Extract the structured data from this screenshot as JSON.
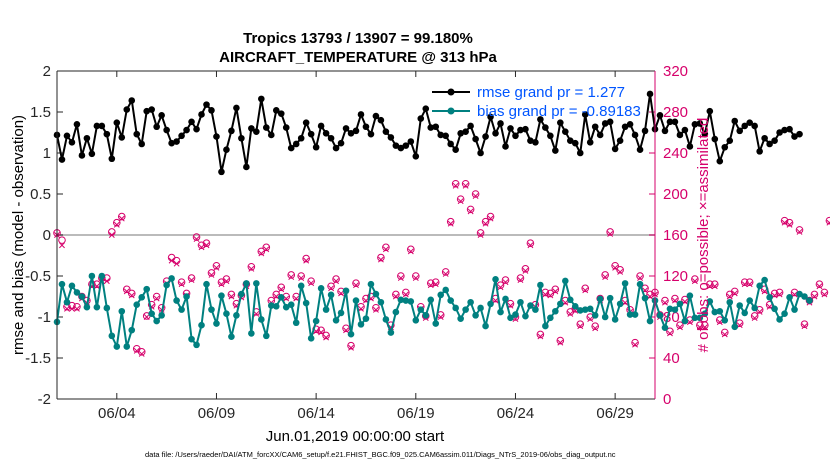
{
  "chart_data": {
    "type": "line",
    "title_line1": "Tropics 13793 / 13907 = 99.180%",
    "title_line2": "AIRCRAFT_TEMPERATURE @ 313 hPa",
    "xlabel": "Jun.01,2019 00:00:00 start",
    "ylabel_left": "rmse and bias (model - observation)",
    "ylabel_right": "# of obs: o=possible; ×=assimilated",
    "xlim": [
      1,
      31
    ],
    "ylim_left": [
      -2,
      2
    ],
    "ylim_right": [
      0,
      320
    ],
    "x_ticks": [
      {
        "value": 4,
        "label": "06/04"
      },
      {
        "value": 9,
        "label": "06/09"
      },
      {
        "value": 14,
        "label": "06/14"
      },
      {
        "value": 19,
        "label": "06/19"
      },
      {
        "value": 24,
        "label": "06/24"
      },
      {
        "value": 29,
        "label": "06/29"
      }
    ],
    "y_ticks_left": [
      {
        "value": -2,
        "label": "-2"
      },
      {
        "value": -1.5,
        "label": "-1.5"
      },
      {
        "value": -1,
        "label": "-1"
      },
      {
        "value": -0.5,
        "label": "-0.5"
      },
      {
        "value": 0,
        "label": "0"
      },
      {
        "value": 0.5,
        "label": "0.5"
      },
      {
        "value": 1,
        "label": "1"
      },
      {
        "value": 1.5,
        "label": "1.5"
      },
      {
        "value": 2,
        "label": "2"
      }
    ],
    "y_ticks_right": [
      {
        "value": 0,
        "label": "0"
      },
      {
        "value": 40,
        "label": "40"
      },
      {
        "value": 80,
        "label": "80"
      },
      {
        "value": 120,
        "label": "120"
      },
      {
        "value": 160,
        "label": "160"
      },
      {
        "value": 200,
        "label": "200"
      },
      {
        "value": 240,
        "label": "240"
      },
      {
        "value": 280,
        "label": "280"
      },
      {
        "value": 320,
        "label": "320"
      }
    ],
    "legend": [
      {
        "name": "rmse grand pr = 1.277",
        "color": "#000000"
      },
      {
        "name": "bias grand pr = -0.89183",
        "color": "#008080"
      }
    ],
    "x_start": 1,
    "x_step": 0.25,
    "series": [
      {
        "name": "rmse",
        "axis": "left",
        "color": "#000000",
        "values": [
          1.22,
          0.92,
          1.21,
          1.13,
          1.35,
          0.97,
          1.18,
          0.99,
          1.33,
          1.33,
          1.23,
          0.93,
          1.37,
          1.19,
          1.53,
          1.64,
          1.23,
          1.11,
          1.51,
          1.53,
          1.32,
          1.46,
          1.28,
          1.12,
          1.14,
          1.21,
          1.28,
          1.38,
          1.29,
          1.47,
          1.59,
          1.52,
          1.2,
          0.77,
          1.04,
          1.27,
          1.55,
          1.18,
          0.83,
          1.3,
          1.26,
          1.66,
          1.31,
          1.22,
          1.52,
          1.48,
          1.31,
          1.06,
          1.11,
          1.18,
          1.37,
          1.23,
          1.07,
          1.33,
          1.24,
          1.18,
          1.06,
          1.12,
          1.3,
          1.24,
          1.27,
          1.47,
          1.32,
          1.23,
          1.45,
          1.4,
          1.26,
          1.19,
          1.09,
          1.06,
          1.09,
          1.14,
          0.96,
          1.42,
          1.54,
          1.31,
          1.32,
          1.22,
          1.21,
          1.11,
          1.04,
          1.24,
          1.26,
          1.33,
          1.17,
          1.0,
          1.2,
          1.44,
          1.24,
          1.36,
          1.08,
          1.3,
          1.21,
          1.28,
          1.29,
          1.15,
          1.13,
          1.41,
          1.31,
          1.21,
          1.03,
          1.37,
          1.26,
          1.15,
          1.12,
          1.0,
          1.47,
          1.13,
          1.32,
          1.22,
          1.36,
          1.38,
          1.05,
          1.15,
          1.32,
          1.35,
          1.22,
          1.04,
          1.27,
          1.72,
          1.29,
          1.46,
          1.27,
          1.38,
          1.38,
          1.22,
          1.28,
          1.08,
          1.35,
          1.36,
          1.23,
          1.51,
          1.17,
          0.9,
          1.07,
          1.15,
          1.39,
          1.27,
          1.33,
          1.37,
          1.33,
          1.02,
          1.18,
          1.11,
          1.15,
          1.25,
          1.28,
          1.29,
          1.2,
          1.23
        ]
      },
      {
        "name": "bias",
        "axis": "left",
        "color": "#008080",
        "values": [
          -1.06,
          -0.6,
          -0.82,
          -0.62,
          -0.7,
          -0.75,
          -0.88,
          -0.5,
          -0.88,
          -0.5,
          -0.89,
          -1.23,
          -1.36,
          -0.93,
          -1.36,
          -1.16,
          -0.85,
          -0.76,
          -0.66,
          -0.96,
          -1.05,
          -0.98,
          -0.61,
          -0.53,
          -0.8,
          -0.91,
          -0.75,
          -1.27,
          -1.34,
          -1.1,
          -0.6,
          -0.91,
          -1.08,
          -0.74,
          -0.96,
          -1.24,
          -0.98,
          -0.72,
          -0.59,
          -1.2,
          -0.59,
          -1.03,
          -1.23,
          -0.86,
          -0.87,
          -0.76,
          -0.88,
          -0.85,
          -1.07,
          -0.62,
          -0.83,
          -1.26,
          -1.05,
          -0.65,
          -0.91,
          -0.73,
          -1.04,
          -0.95,
          -0.68,
          -1.21,
          -0.8,
          -1.09,
          -1.02,
          -0.6,
          -0.72,
          -0.82,
          -1.03,
          -1.19,
          -0.94,
          -0.79,
          -0.8,
          -0.81,
          -1.04,
          -0.91,
          -0.98,
          -0.79,
          -1.08,
          -0.73,
          -0.67,
          -0.8,
          -0.89,
          -1.02,
          -0.91,
          -0.82,
          -0.98,
          -0.89,
          -1.11,
          -0.84,
          -0.54,
          -0.94,
          -0.78,
          -1.01,
          -0.97,
          -0.82,
          -0.99,
          -0.86,
          -0.91,
          -0.61,
          -1.11,
          -1.01,
          -0.93,
          -0.84,
          -0.56,
          -0.79,
          -0.87,
          -0.92,
          -0.91,
          -0.9,
          -0.98,
          -0.78,
          -1.0,
          -0.77,
          -1.03,
          -0.84,
          -0.59,
          -0.97,
          -0.97,
          -0.6,
          -0.77,
          -1.05,
          -0.8,
          -0.98,
          -1.13,
          -0.9,
          -0.91,
          -0.84,
          -1.05,
          -0.74,
          -1.01,
          -1.01,
          -0.96,
          -0.81,
          -0.94,
          -0.93,
          -1.04,
          -0.82,
          -1.12,
          -0.86,
          -0.95,
          -0.8,
          -0.89,
          -0.62,
          -0.55,
          -0.76,
          -0.9,
          -1.03,
          -0.96,
          -0.76,
          -0.91,
          -0.72,
          -0.75,
          -0.8
        ]
      }
    ],
    "obs_possible": {
      "axis": "right",
      "color": "#d6006b",
      "values": [
        162,
        155,
        90,
        91,
        90,
        100,
        96,
        112,
        112,
        118,
        118,
        163,
        172,
        178,
        107,
        103,
        49,
        46,
        81,
        92,
        100,
        89,
        115,
        138,
        135,
        114,
        103,
        118,
        158,
        150,
        152,
        123,
        130,
        114,
        117,
        102,
        93,
        101,
        112,
        129,
        85,
        144,
        148,
        96,
        102,
        109,
        100,
        121,
        100,
        120,
        137,
        115,
        68,
        67,
        62,
        110,
        117,
        105,
        69,
        52,
        113,
        90,
        98,
        100,
        89,
        138,
        148,
        72,
        102,
        120,
        104,
        146,
        120,
        90,
        81,
        113,
        114,
        82,
        124,
        173,
        210,
        195,
        210,
        185,
        200,
        162,
        173,
        178,
        98,
        111,
        116,
        93,
        80,
        118,
        127,
        152,
        92,
        63,
        104,
        103,
        107,
        57,
        96,
        85,
        88,
        73,
        108,
        80,
        71,
        98,
        121,
        163,
        130,
        126,
        96,
        87,
        55,
        120,
        108,
        102,
        104,
        82,
        96,
        66,
        98,
        72,
        97,
        77,
        117,
        72,
        72,
        112,
        112,
        77,
        65,
        102,
        105,
        74,
        114,
        114,
        81,
        87,
        107,
        92,
        103,
        104,
        174,
        172,
        104,
        165,
        73,
        96,
        102,
        112,
        104,
        174,
        158,
        88,
        176,
        148,
        96,
        122,
        96,
        110,
        126,
        97,
        107,
        103,
        90,
        103,
        101,
        96,
        115,
        70,
        86,
        169,
        99,
        113,
        77,
        75,
        90,
        71,
        176,
        175,
        105,
        94,
        116,
        87,
        113,
        60,
        111,
        0
      ]
    },
    "obs_assimilated": {
      "axis": "right",
      "color": "#d6006b",
      "values": [
        160,
        150,
        88,
        88,
        88,
        98,
        94,
        110,
        110,
        115,
        115,
        160,
        170,
        176,
        105,
        101,
        47,
        44,
        80,
        90,
        98,
        87,
        113,
        135,
        132,
        112,
        101,
        116,
        156,
        148,
        150,
        121,
        128,
        112,
        115,
        100,
        91,
        99,
        110,
        127,
        83,
        142,
        146,
        94,
        100,
        107,
        98,
        119,
        98,
        118,
        135,
        113,
        66,
        65,
        60,
        108,
        115,
        103,
        67,
        50,
        111,
        88,
        96,
        98,
        87,
        136,
        146,
        70,
        100,
        118,
        102,
        144,
        118,
        88,
        79,
        111,
        112,
        80,
        122,
        171,
        208,
        193,
        208,
        183,
        198,
        160,
        171,
        176,
        96,
        109,
        114,
        91,
        78,
        116,
        125,
        150,
        90,
        61,
        102,
        101,
        105,
        55,
        94,
        83,
        86,
        71,
        106,
        78,
        69,
        96,
        119,
        161,
        128,
        124,
        94,
        85,
        53,
        118,
        106,
        100,
        102,
        80,
        94,
        64,
        96,
        70,
        95,
        75,
        115,
        70,
        70,
        110,
        110,
        75,
        63,
        100,
        103,
        72,
        112,
        112,
        79,
        85,
        105,
        90,
        101,
        102,
        172,
        170,
        102,
        163,
        71,
        94,
        100,
        110,
        102,
        172,
        156,
        86,
        174,
        146,
        94,
        120,
        94,
        108,
        124,
        95,
        105,
        101,
        88,
        101,
        99,
        94,
        113,
        68,
        84,
        167,
        97,
        111,
        75,
        73,
        88,
        69,
        174,
        173,
        103,
        92,
        114,
        85,
        111,
        58,
        109,
        0
      ]
    }
  },
  "footer": {
    "note": "data file: /Users/raeder/DAI/ATM_forcXX/CAM6_setup/f.e21.FHIST_BGC.f09_025.CAM6assim.011/Diags_NTrS_2019-06/obs_diag_output.nc"
  },
  "colors": {
    "rmse": "#000000",
    "bias": "#008080",
    "obs": "#d6006b",
    "legend_text": "#0055ff",
    "zero_line": "#bbbbbb"
  }
}
